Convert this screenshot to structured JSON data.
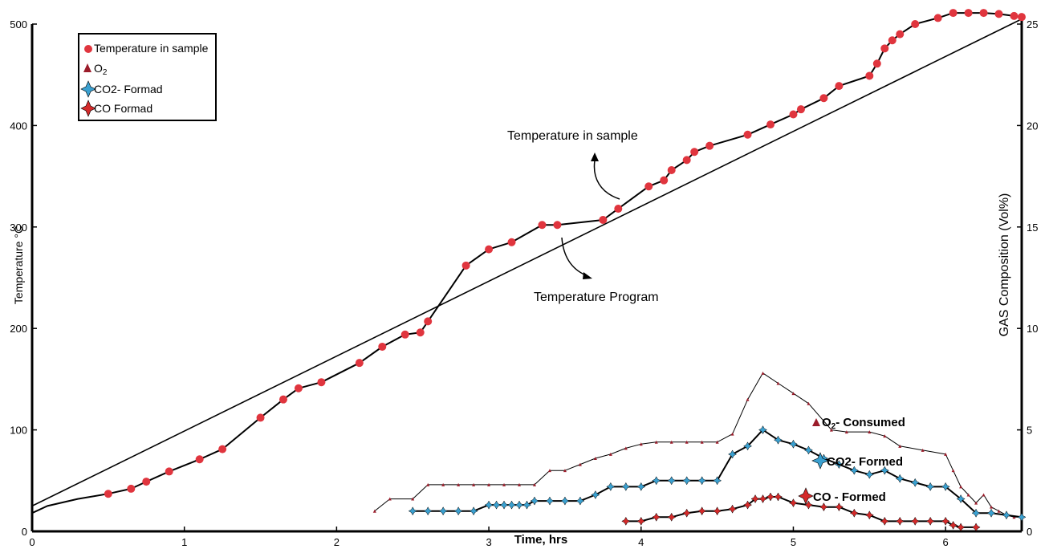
{
  "chart_data": {
    "type": "line",
    "xlabel": "Time, hrs",
    "ylabel": "Temperature °C",
    "y2label": "GAS Composition (Vol%)",
    "xlim": [
      0,
      6.5
    ],
    "ylim": [
      0,
      500
    ],
    "y2lim": [
      0,
      25
    ],
    "x_ticks": [
      "0",
      "1",
      "2",
      "3",
      "4",
      "5",
      "6"
    ],
    "y_ticks": [
      "0",
      "100",
      "200",
      "300",
      "400",
      "500"
    ],
    "y2_ticks": [
      "0",
      "5",
      "10",
      "15",
      "20",
      "25"
    ],
    "legend": {
      "placement": "top-left",
      "items": [
        {
          "label": "Temperature in sample",
          "marker": "circle",
          "color": "#e0353e"
        },
        {
          "label": "O",
          "sub": "2",
          "marker": "triangle",
          "color": "#9b1c2a"
        },
        {
          "label": "CO2- Formad",
          "marker": "star4",
          "color": "#3aa0d0"
        },
        {
          "label": "CO Formad",
          "marker": "star4",
          "color": "#d42a2a"
        }
      ]
    },
    "annotations": {
      "temp_sample": "Temperature in sample",
      "temp_program": "Temperature Program"
    },
    "series_labels": {
      "o2": {
        "text": "O",
        "sub": "2",
        "rest": "- Consumed"
      },
      "co2": "CO2- Formed",
      "co": "CO - Formed"
    },
    "series": [
      {
        "id": "program",
        "axis": "left",
        "x": [
          0,
          6.5
        ],
        "y": [
          25,
          505
        ]
      },
      {
        "id": "sample",
        "name": "Temperature in sample",
        "axis": "left",
        "color": "#e0353e",
        "x": [
          0,
          0.1,
          0.3,
          0.5,
          0.65,
          0.75,
          0.9,
          1.1,
          1.25,
          1.5,
          1.65,
          1.75,
          1.9,
          2.15,
          2.3,
          2.45,
          2.55,
          2.6,
          2.85,
          3.0,
          3.15,
          3.35,
          3.45,
          3.75,
          3.85,
          4.05,
          4.15,
          4.2,
          4.3,
          4.35,
          4.45,
          4.7,
          4.85,
          5.0,
          5.05,
          5.2,
          5.3,
          5.5,
          5.55,
          5.6,
          5.65,
          5.7,
          5.8,
          5.95,
          6.05,
          6.15,
          6.25,
          6.35,
          6.45,
          6.5
        ],
        "y": [
          18,
          25,
          32,
          37,
          42,
          49,
          59,
          71,
          81,
          112,
          130,
          141,
          147,
          166,
          182,
          194,
          196,
          207,
          262,
          278,
          285,
          302,
          302,
          307,
          318,
          340,
          346,
          356,
          366,
          374,
          380,
          391,
          401,
          411,
          416,
          427,
          439,
          449,
          461,
          476,
          484,
          490,
          500,
          506,
          511,
          511,
          511,
          510,
          508,
          507
        ],
        "marker_index_from": 3
      },
      {
        "id": "o2",
        "name": "O2- Consumed",
        "axis": "right",
        "color": "#9b1c2a",
        "x": [
          2.25,
          2.35,
          2.5,
          2.6,
          2.7,
          2.8,
          2.9,
          3.0,
          3.1,
          3.2,
          3.3,
          3.4,
          3.5,
          3.6,
          3.7,
          3.8,
          3.9,
          4.0,
          4.1,
          4.2,
          4.3,
          4.4,
          4.5,
          4.6,
          4.7,
          4.8,
          4.9,
          5.0,
          5.1,
          5.25,
          5.35,
          5.5,
          5.6,
          5.7,
          5.85,
          6.0,
          6.05,
          6.1,
          6.15,
          6.2,
          6.25,
          6.3,
          6.35,
          6.4,
          6.45,
          6.5
        ],
        "y": [
          1.0,
          1.6,
          1.6,
          2.3,
          2.3,
          2.3,
          2.3,
          2.3,
          2.3,
          2.3,
          2.3,
          3.0,
          3.0,
          3.3,
          3.6,
          3.8,
          4.1,
          4.3,
          4.4,
          4.4,
          4.4,
          4.4,
          4.4,
          4.8,
          6.5,
          7.8,
          7.3,
          6.8,
          6.3,
          5.0,
          4.9,
          4.9,
          4.7,
          4.2,
          4.0,
          3.8,
          3.0,
          2.2,
          1.8,
          1.4,
          1.8,
          1.2,
          1.0,
          0.8,
          0.7,
          0.7
        ]
      },
      {
        "id": "co2",
        "name": "CO2- Formed",
        "axis": "right",
        "color": "#3aa0d0",
        "x": [
          2.5,
          2.6,
          2.7,
          2.8,
          2.9,
          3.0,
          3.05,
          3.1,
          3.15,
          3.2,
          3.25,
          3.3,
          3.4,
          3.5,
          3.6,
          3.7,
          3.8,
          3.9,
          4.0,
          4.1,
          4.2,
          4.3,
          4.4,
          4.5,
          4.6,
          4.7,
          4.8,
          4.9,
          5.0,
          5.1,
          5.2,
          5.3,
          5.4,
          5.5,
          5.6,
          5.7,
          5.8,
          5.9,
          6.0,
          6.1,
          6.2,
          6.3,
          6.4,
          6.5
        ],
        "y": [
          1.0,
          1.0,
          1.0,
          1.0,
          1.0,
          1.3,
          1.3,
          1.3,
          1.3,
          1.3,
          1.3,
          1.5,
          1.5,
          1.5,
          1.5,
          1.8,
          2.2,
          2.2,
          2.2,
          2.5,
          2.5,
          2.5,
          2.5,
          2.5,
          3.8,
          4.2,
          5.0,
          4.5,
          4.3,
          4.0,
          3.6,
          3.3,
          3.0,
          2.8,
          3.0,
          2.6,
          2.4,
          2.2,
          2.2,
          1.6,
          0.9,
          0.9,
          0.8,
          0.7
        ]
      },
      {
        "id": "co",
        "name": "CO - Formed",
        "axis": "right",
        "color": "#d42a2a",
        "x": [
          3.9,
          4.0,
          4.1,
          4.2,
          4.3,
          4.4,
          4.5,
          4.6,
          4.7,
          4.75,
          4.8,
          4.85,
          4.9,
          5.0,
          5.1,
          5.2,
          5.3,
          5.4,
          5.5,
          5.6,
          5.7,
          5.8,
          5.9,
          6.0,
          6.05,
          6.1,
          6.2
        ],
        "y": [
          0.5,
          0.5,
          0.7,
          0.7,
          0.9,
          1.0,
          1.0,
          1.1,
          1.3,
          1.6,
          1.6,
          1.7,
          1.7,
          1.4,
          1.3,
          1.2,
          1.2,
          0.9,
          0.8,
          0.5,
          0.5,
          0.5,
          0.5,
          0.5,
          0.3,
          0.2,
          0.2
        ]
      }
    ]
  }
}
